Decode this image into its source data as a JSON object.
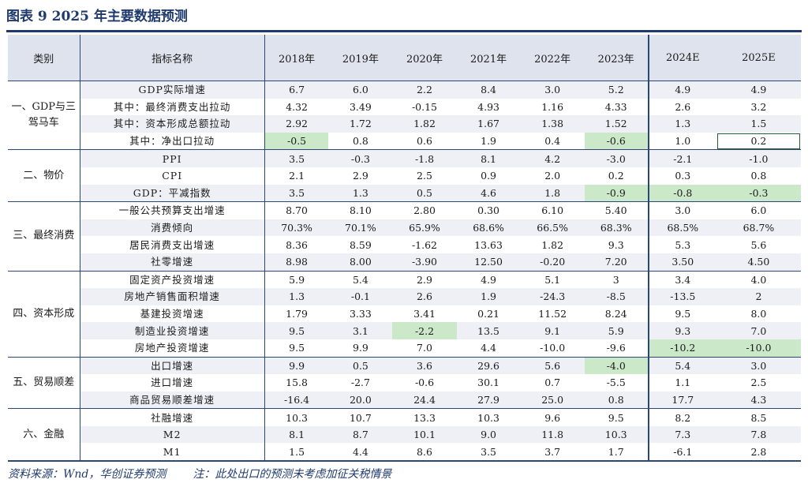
{
  "title": "图表 9 2025 年主要数据预测",
  "headers": {
    "category": "类别",
    "indicator": "指标名称",
    "years": [
      "2018年",
      "2019年",
      "2020年",
      "2021年",
      "2022年",
      "2023年",
      "2024E",
      "2025E"
    ]
  },
  "groups": [
    {
      "category": "一、GDP与三驾马车",
      "rows": [
        {
          "name": "GDP实际增速",
          "values": [
            "6.7",
            "6.0",
            "2.2",
            "8.4",
            "3.0",
            "5.2",
            "4.9",
            "4.9"
          ]
        },
        {
          "name": "其中：最终消费支出拉动",
          "values": [
            "4.32",
            "3.49",
            "-0.15",
            "4.93",
            "1.16",
            "4.33",
            "2.6",
            "3.2"
          ]
        },
        {
          "name": "其中：资本形成总额拉动",
          "values": [
            "2.92",
            "1.72",
            "1.82",
            "1.67",
            "1.38",
            "1.52",
            "1.3",
            "1.5"
          ]
        },
        {
          "name": "其中：净出口拉动",
          "values": [
            "-0.5",
            "0.8",
            "0.6",
            "1.9",
            "0.4",
            "-0.6",
            "1.0",
            "0.2"
          ]
        }
      ]
    },
    {
      "category": "二、物价",
      "rows": [
        {
          "name": "PPI",
          "values": [
            "3.5",
            "-0.3",
            "-1.8",
            "8.1",
            "4.2",
            "-3.0",
            "-2.1",
            "-1.0"
          ]
        },
        {
          "name": "CPI",
          "values": [
            "2.1",
            "2.9",
            "2.5",
            "0.9",
            "2.0",
            "0.2",
            "0.3",
            "0.8"
          ]
        },
        {
          "name": "GDP：平减指数",
          "values": [
            "3.5",
            "1.3",
            "0.5",
            "4.6",
            "1.8",
            "-0.9",
            "-0.8",
            "-0.3"
          ]
        }
      ]
    },
    {
      "category": "三、最终消费",
      "rows": [
        {
          "name": "一般公共预算支出增速",
          "values": [
            "8.70",
            "8.10",
            "2.80",
            "0.30",
            "6.10",
            "5.40",
            "3.0",
            "6.0"
          ]
        },
        {
          "name": "消费倾向",
          "values": [
            "70.3%",
            "70.1%",
            "65.9%",
            "68.6%",
            "66.5%",
            "68.3%",
            "68.5%",
            "68.7%"
          ]
        },
        {
          "name": "居民消费支出增速",
          "values": [
            "8.36",
            "8.59",
            "-1.62",
            "13.63",
            "1.82",
            "9.3",
            "5.3",
            "5.6"
          ]
        },
        {
          "name": "社零增速",
          "values": [
            "8.98",
            "8.00",
            "-3.90",
            "12.50",
            "-0.20",
            "7.20",
            "3.50",
            "4.50"
          ]
        }
      ]
    },
    {
      "category": "四、资本形成",
      "rows": [
        {
          "name": "固定资产投资增速",
          "values": [
            "5.9",
            "5.4",
            "2.9",
            "4.9",
            "5.1",
            "3",
            "3.4",
            "4.0"
          ]
        },
        {
          "name": "房地产销售面积增速",
          "values": [
            "1.3",
            "-0.1",
            "2.6",
            "1.9",
            "-24.3",
            "-8.5",
            "-13.5",
            "2"
          ]
        },
        {
          "name": "基建投资增速",
          "values": [
            "1.79",
            "3.33",
            "3.41",
            "0.21",
            "11.52",
            "8.24",
            "9.5",
            "8.0"
          ]
        },
        {
          "name": "制造业投资增速",
          "values": [
            "9.5",
            "3.1",
            "-2.2",
            "13.5",
            "9.1",
            "5.9",
            "9.3",
            "7.0"
          ]
        },
        {
          "name": "房地产投资增速",
          "values": [
            "9.5",
            "9.9",
            "7.0",
            "4.4",
            "-10.0",
            "-9.6",
            "-10.2",
            "-10.0"
          ]
        }
      ]
    },
    {
      "category": "五、贸易顺差",
      "rows": [
        {
          "name": "出口增速",
          "values": [
            "9.9",
            "0.5",
            "3.6",
            "29.6",
            "5.6",
            "-4.0",
            "5.4",
            "3.0"
          ]
        },
        {
          "name": "进口增速",
          "values": [
            "15.8",
            "-2.7",
            "-0.6",
            "30.1",
            "0.7",
            "-5.5",
            "1.1",
            "2.5"
          ]
        },
        {
          "name": "商品贸易顺差增速",
          "values": [
            "-16.4",
            "20.0",
            "24.4",
            "27.9",
            "25.0",
            "0.8",
            "17.7",
            "4.3"
          ]
        }
      ]
    },
    {
      "category": "六、金融",
      "rows": [
        {
          "name": "社融增速",
          "values": [
            "10.3",
            "10.7",
            "13.3",
            "10.3",
            "9.6",
            "9.5",
            "8.2",
            "8.5"
          ]
        },
        {
          "name": "M2",
          "values": [
            "8.1",
            "8.7",
            "10.1",
            "9.0",
            "11.8",
            "10.3",
            "7.3",
            "7.8"
          ]
        },
        {
          "name": "M1",
          "values": [
            "1.5",
            "4.4",
            "8.6",
            "3.5",
            "3.7",
            "1.7",
            "-6.1",
            "2.8"
          ]
        }
      ]
    }
  ],
  "highlights": [
    [
      0,
      3,
      0
    ],
    [
      0,
      3,
      5
    ],
    [
      1,
      2,
      5
    ],
    [
      1,
      2,
      6
    ],
    [
      1,
      2,
      7
    ],
    [
      3,
      3,
      2
    ],
    [
      3,
      4,
      6
    ],
    [
      3,
      4,
      7
    ],
    [
      4,
      0,
      5
    ]
  ],
  "boxed": [
    [
      0,
      3,
      7
    ]
  ],
  "colors": {
    "accent": "#1f3a6e",
    "header_bg": "#dfe3ee",
    "stripe": "#eef0f5",
    "highlight": "#cbe8c9"
  },
  "footer": {
    "source": "资料来源：Wnd，华创证券预测",
    "note": "注：此处出口的预测未考虑加征关税情景"
  }
}
